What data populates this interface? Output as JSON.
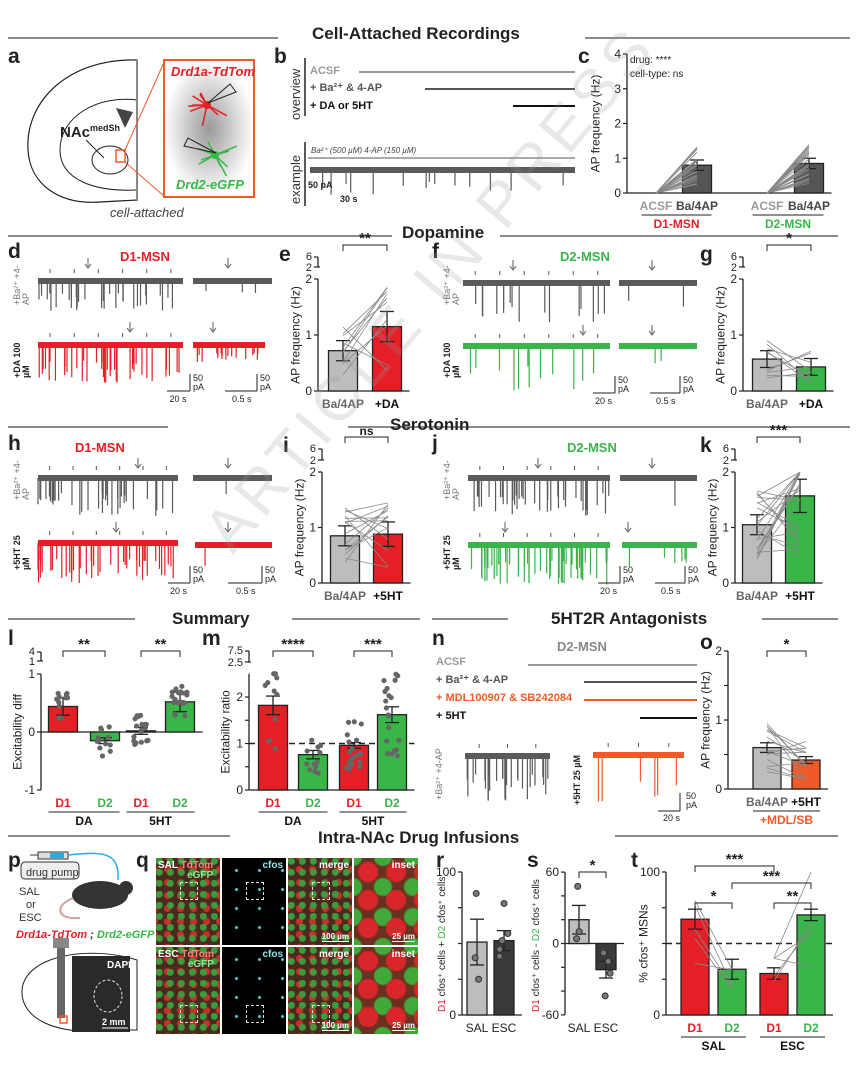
{
  "sections": {
    "cell_attached": "Cell-Attached Recordings",
    "dopamine": "Dopamine",
    "serotonin": "Serotonin",
    "summary": "Summary",
    "antagonists": "5HT2R  Antagonists",
    "infusions": "Intra-NAc Drug Infusions"
  },
  "panel_letters": {
    "a": "a",
    "b": "b",
    "c": "c",
    "d": "d",
    "e": "e",
    "f": "f",
    "g": "g",
    "h": "h",
    "i": "i",
    "j": "j",
    "k": "k",
    "l": "l",
    "m": "m",
    "n": "n",
    "o": "o",
    "p": "p",
    "q": "q",
    "r": "r",
    "s": "s",
    "t": "t"
  },
  "watermark": "ARTICLE IN PRESS",
  "panel_a": {
    "region": "NAc",
    "region_sup": "medSh",
    "d1_label": "Drd1a-TdTom",
    "d2_label": "Drd2-eGFP",
    "caption": "cell-attached"
  },
  "panel_b": {
    "overview_label": "overview",
    "example_label": "example",
    "acsf": "ACSF",
    "ba": "+ Ba²⁺ &  4-AP",
    "da_5ht": "+ DA or 5HT",
    "example_drug": "Ba²⁺ (500 µM) 4-AP (150 µM)",
    "scale_y": "50 pA",
    "scale_x": "30 s"
  },
  "traces": {
    "d_title": "D1-MSN",
    "f_title": "D2-MSN",
    "h_title": "D1-MSN",
    "j_title": "D2-MSN",
    "ba_label": "+Ba²⁺ +4-AP",
    "da_label": "+DA 100 µM",
    "ht_label": "+5HT 25 µM",
    "scale_pa": "50 pA",
    "scale_20s": "20 s",
    "scale_05s": "0.5 s"
  },
  "panel_n": {
    "title": "D2-MSN",
    "acsf": "ACSF",
    "ba": "+ Ba²⁺ &  4-AP",
    "mdl": "+ MDL100907 & SB242084",
    "ht": "+ 5HT",
    "trace1_label": "+Ba²⁺ +4-AP",
    "trace2_label": "+5HT 25 µM",
    "scale_pa": "50 pA",
    "scale_s": "20 s"
  },
  "panel_p": {
    "pump": "drug pump",
    "sal": "SAL",
    "or": "or",
    "esc": "ESC",
    "genotype_d1": "Drd1a-TdTom",
    "sep": " ; ",
    "genotype_d2": "Drd2-eGFP",
    "dapi": "DAPI",
    "scale": "2 mm"
  },
  "panel_q": {
    "rows": [
      {
        "cond": "SAL"
      },
      {
        "cond": "ESC"
      }
    ],
    "tdtom": "TdTom",
    "egfp": "eGFP",
    "cfos": "cfos",
    "merge": "merge",
    "inset": "inset",
    "scale_merge": "100 µm",
    "scale_inset": "25 µm"
  },
  "colors": {
    "d1": "#e41f26",
    "d2": "#39b54a",
    "baseline": "#bdbdbd",
    "ba4ap": "#555555",
    "antagonist": "#f05a28",
    "esc": "#3a3a3a",
    "text": "#222222"
  },
  "chart_data": [
    {
      "id": "c",
      "type": "bar",
      "ylabel": "AP frequency (Hz)",
      "ylim": [
        0,
        4
      ],
      "yticks": [
        0,
        1,
        2,
        3,
        4
      ],
      "categories": [
        "ACSF",
        "Ba/4AP",
        "ACSF",
        "Ba/4AP"
      ],
      "values": [
        0,
        0.8,
        0,
        0.85
      ],
      "errors": [
        0,
        0.15,
        0,
        0.15
      ],
      "bar_colors": [
        "#bdbdbd",
        "#555555",
        "#bdbdbd",
        "#555555"
      ],
      "cat_colors": [
        "#9a9a9a",
        "#444444",
        "#9a9a9a",
        "#444444"
      ],
      "groups": [
        {
          "label": "D1-MSN",
          "color": "#e41f26",
          "span": [
            0,
            1
          ]
        },
        {
          "label": "D2-MSN",
          "color": "#39b54a",
          "span": [
            2,
            3
          ]
        }
      ],
      "annotations": [
        "drug: ****",
        "cell-type: ns"
      ],
      "significance": []
    },
    {
      "id": "e",
      "type": "bar",
      "ylabel": "AP frequency (Hz)",
      "ylim": [
        0,
        2
      ],
      "ybreak": [
        2,
        6
      ],
      "yticks": [
        0,
        1,
        2
      ],
      "categories": [
        "Ba/4AP",
        "+DA"
      ],
      "values": [
        0.72,
        1.15
      ],
      "errors": [
        0.18,
        0.27
      ],
      "bar_colors": [
        "#bdbdbd",
        "#e41f26"
      ],
      "cat_colors": [
        "#666666",
        "#111111"
      ],
      "groups": [],
      "significance": [
        {
          "pair": [
            0,
            1
          ],
          "text": "**"
        }
      ]
    },
    {
      "id": "g",
      "type": "bar",
      "ylabel": "AP frequency (Hz)",
      "ylim": [
        0,
        2
      ],
      "ybreak": [
        2,
        6
      ],
      "yticks": [
        0,
        1,
        2
      ],
      "categories": [
        "Ba/4AP",
        "+DA"
      ],
      "values": [
        0.57,
        0.43
      ],
      "errors": [
        0.15,
        0.15
      ],
      "bar_colors": [
        "#bdbdbd",
        "#39b54a"
      ],
      "cat_colors": [
        "#666666",
        "#111111"
      ],
      "groups": [],
      "significance": [
        {
          "pair": [
            0,
            1
          ],
          "text": "*"
        }
      ]
    },
    {
      "id": "i",
      "type": "bar",
      "ylabel": "AP frequency (Hz)",
      "ylim": [
        0,
        2
      ],
      "ybreak": [
        2,
        6
      ],
      "yticks": [
        0,
        1,
        2
      ],
      "categories": [
        "Ba/4AP",
        "+5HT"
      ],
      "values": [
        0.85,
        0.88
      ],
      "errors": [
        0.18,
        0.22
      ],
      "bar_colors": [
        "#bdbdbd",
        "#e41f26"
      ],
      "cat_colors": [
        "#666666",
        "#111111"
      ],
      "groups": [],
      "significance": [
        {
          "pair": [
            0,
            1
          ],
          "text": "ns"
        }
      ]
    },
    {
      "id": "k",
      "type": "bar",
      "ylabel": "AP frequency (Hz)",
      "ylim": [
        0,
        2
      ],
      "ybreak": [
        2,
        6
      ],
      "yticks": [
        0,
        1,
        2
      ],
      "categories": [
        "Ba/4AP",
        "+5HT"
      ],
      "values": [
        1.05,
        1.57
      ],
      "errors": [
        0.18,
        0.3
      ],
      "bar_colors": [
        "#bdbdbd",
        "#39b54a"
      ],
      "cat_colors": [
        "#666666",
        "#111111"
      ],
      "groups": [],
      "significance": [
        {
          "pair": [
            0,
            1
          ],
          "text": "***"
        }
      ]
    },
    {
      "id": "l",
      "type": "bar",
      "ylabel": "Excitability diff",
      "ylim": [
        -1,
        1
      ],
      "ybreak": [
        1,
        4
      ],
      "yticks": [
        -1,
        0,
        1
      ],
      "categories": [
        "D1",
        "D2",
        "D1",
        "D2"
      ],
      "values": [
        0.44,
        -0.15,
        0.02,
        0.52
      ],
      "errors": [
        0.15,
        0.05,
        0.06,
        0.17
      ],
      "bar_colors": [
        "#e41f26",
        "#39b54a",
        "#e41f26",
        "#39b54a"
      ],
      "cat_colors": [
        "#e41f26",
        "#39b54a",
        "#e41f26",
        "#39b54a"
      ],
      "groups": [
        {
          "label": "DA",
          "color": "#111111",
          "span": [
            0,
            1
          ]
        },
        {
          "label": "5HT",
          "color": "#111111",
          "span": [
            2,
            3
          ]
        }
      ],
      "significance": [
        {
          "pair": [
            0,
            1
          ],
          "text": "**"
        },
        {
          "pair": [
            2,
            3
          ],
          "text": "**"
        }
      ]
    },
    {
      "id": "m",
      "type": "bar",
      "ylabel": "Excitability ratio",
      "ylim": [
        0,
        2.5
      ],
      "ybreak": [
        2.5,
        7.5
      ],
      "yticks": [
        0,
        0.5,
        1,
        1.5,
        2
      ],
      "ytick_labels": [
        "0",
        "",
        "1",
        "",
        "2"
      ],
      "reference_line": 1,
      "categories": [
        "D1",
        "D2",
        "D1",
        "D2"
      ],
      "values": [
        1.82,
        0.76,
        0.96,
        1.62
      ],
      "errors": [
        0.2,
        0.09,
        0.06,
        0.17
      ],
      "bar_colors": [
        "#e41f26",
        "#39b54a",
        "#e41f26",
        "#39b54a"
      ],
      "cat_colors": [
        "#e41f26",
        "#39b54a",
        "#e41f26",
        "#39b54a"
      ],
      "groups": [
        {
          "label": "DA",
          "color": "#111111",
          "span": [
            0,
            1
          ]
        },
        {
          "label": "5HT",
          "color": "#111111",
          "span": [
            2,
            3
          ]
        }
      ],
      "significance": [
        {
          "pair": [
            0,
            1
          ],
          "text": "****"
        },
        {
          "pair": [
            2,
            3
          ],
          "text": "***"
        }
      ]
    },
    {
      "id": "o",
      "type": "bar",
      "ylabel": "AP frequency (Hz)",
      "ylim": [
        0,
        2
      ],
      "yticks": [
        0,
        0.5,
        1,
        1.5,
        2
      ],
      "ytick_labels": [
        "0",
        "",
        "1",
        "",
        "2"
      ],
      "categories": [
        "Ba/4AP",
        "+5HT"
      ],
      "values": [
        0.6,
        0.42
      ],
      "errors": [
        0.07,
        0.05
      ],
      "bar_colors": [
        "#bdbdbd",
        "#f05a28"
      ],
      "cat_colors": [
        "#666666",
        "#111111"
      ],
      "groups": [
        {
          "label": "+MDL/SB",
          "color": "#f05a28",
          "span": [
            0,
            1
          ]
        }
      ],
      "significance": [
        {
          "pair": [
            0,
            1
          ],
          "text": "*"
        }
      ]
    },
    {
      "id": "r",
      "type": "bar",
      "ylabel_parts": [
        "D1",
        "cfos⁺ cells + ",
        "D2",
        "cfos⁺ cells"
      ],
      "ylim": [
        0,
        100
      ],
      "yticks": [
        0,
        25,
        50,
        75,
        100
      ],
      "ytick_labels": [
        "0",
        "",
        "",
        "",
        "100"
      ],
      "categories": [
        "SAL",
        "ESC"
      ],
      "values": [
        51,
        52
      ],
      "errors": [
        16,
        7
      ],
      "points": [
        [
          85,
          40,
          25
        ],
        [
          78,
          57,
          52,
          46,
          41
        ]
      ],
      "bar_colors": [
        "#bdbdbd",
        "#3a3a3a"
      ],
      "cat_colors": [
        "#222222",
        "#222222"
      ],
      "groups": [],
      "significance": []
    },
    {
      "id": "s",
      "type": "bar",
      "ylabel_parts": [
        "D1",
        "cfos⁺ cells - ",
        "D2",
        "cfos⁺ cells"
      ],
      "ylim": [
        -60,
        60
      ],
      "yticks": [
        -60,
        -40,
        -20,
        0,
        20,
        40,
        60
      ],
      "ytick_labels": [
        "-60",
        "",
        "",
        "0",
        "",
        "",
        "60"
      ],
      "categories": [
        "SAL",
        "ESC"
      ],
      "values": [
        20,
        -22
      ],
      "errors": [
        12,
        7
      ],
      "points": [
        [
          48,
          10,
          4
        ],
        [
          -8,
          -8,
          -25,
          -44,
          -15
        ]
      ],
      "bar_colors": [
        "#bdbdbd",
        "#3a3a3a"
      ],
      "cat_colors": [
        "#222222",
        "#222222"
      ],
      "groups": [],
      "significance": [
        {
          "pair": [
            0,
            1
          ],
          "text": "*"
        }
      ]
    },
    {
      "id": "t",
      "type": "bar",
      "ylabel": "% cfos⁺ MSNs",
      "ylim": [
        0,
        100
      ],
      "yticks": [
        0,
        25,
        50,
        75,
        100
      ],
      "ytick_labels": [
        "0",
        "",
        "",
        "",
        "100"
      ],
      "reference_line": 50,
      "categories": [
        "D1",
        "D2",
        "D1",
        "D2"
      ],
      "values": [
        67,
        32,
        29,
        70
      ],
      "errors": [
        7,
        7,
        4,
        4
      ],
      "bar_colors": [
        "#e41f26",
        "#39b54a",
        "#e41f26",
        "#39b54a"
      ],
      "cat_colors": [
        "#e41f26",
        "#39b54a",
        "#e41f26",
        "#39b54a"
      ],
      "groups": [
        {
          "label": "SAL",
          "color": "#111111",
          "span": [
            0,
            1
          ]
        },
        {
          "label": "ESC",
          "color": "#111111",
          "span": [
            2,
            3
          ]
        }
      ],
      "significance": [
        {
          "pair": [
            0,
            2
          ],
          "text": "***"
        },
        {
          "pair": [
            1,
            3
          ],
          "text": "***"
        },
        {
          "pair": [
            0,
            1
          ],
          "text": "*"
        },
        {
          "pair": [
            2,
            3
          ],
          "text": "**"
        }
      ]
    }
  ]
}
